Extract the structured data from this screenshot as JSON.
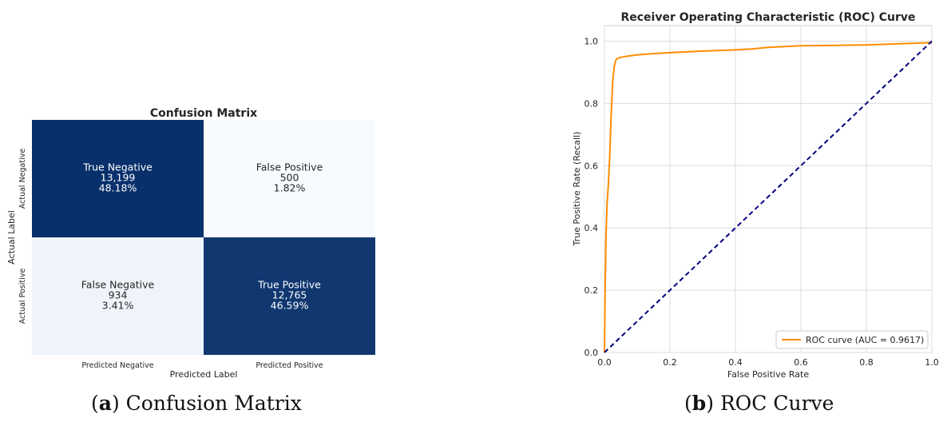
{
  "chart_data": [
    {
      "type": "heatmap",
      "title": "Confusion Matrix",
      "xlabel": "Predicted Label",
      "ylabel": "Actual Label",
      "x_ticklabels": [
        "Predicted Negative",
        "Predicted Positive"
      ],
      "y_ticklabels": [
        "Actual Negative",
        "Actual Positive"
      ],
      "cells": [
        [
          {
            "label": "True Negative",
            "count": "13,199",
            "percent": "48.18%",
            "value": 13199
          },
          {
            "label": "False Positive",
            "count": "500",
            "percent": "1.82%",
            "value": 500
          }
        ],
        [
          {
            "label": "False Negative",
            "count": "934",
            "percent": "3.41%",
            "value": 934
          },
          {
            "label": "True Positive",
            "count": "12,765",
            "percent": "46.59%",
            "value": 12765
          }
        ]
      ],
      "colormap": [
        "#f7fbff",
        "#08306b"
      ],
      "colorbar": false
    },
    {
      "type": "line",
      "title": "Receiver Operating Characteristic (ROC) Curve",
      "xlabel": "False Positive Rate",
      "ylabel": "True Positive Rate (Recall)",
      "xlim": [
        0.0,
        1.0
      ],
      "ylim": [
        0.0,
        1.05
      ],
      "xticks": [
        "0.0",
        "0.2",
        "0.4",
        "0.6",
        "0.8",
        "1.0"
      ],
      "yticks": [
        "0.0",
        "0.2",
        "0.4",
        "0.6",
        "0.8",
        "1.0"
      ],
      "grid": true,
      "legend_position": "lower-right",
      "series": [
        {
          "name": "ROC curve (AUC = 0.9617)",
          "color": "#ff8c00",
          "style": "solid",
          "x": [
            0.0,
            0.002,
            0.005,
            0.008,
            0.012,
            0.016,
            0.02,
            0.025,
            0.03,
            0.035,
            0.04,
            0.05,
            0.07,
            0.1,
            0.15,
            0.2,
            0.3,
            0.4,
            0.45,
            0.5,
            0.6,
            0.8,
            1.0
          ],
          "y": [
            0.0,
            0.2,
            0.38,
            0.48,
            0.54,
            0.63,
            0.75,
            0.87,
            0.92,
            0.94,
            0.945,
            0.948,
            0.952,
            0.956,
            0.96,
            0.963,
            0.968,
            0.972,
            0.975,
            0.98,
            0.985,
            0.988,
            0.995
          ]
        },
        {
          "name": "",
          "color": "#000080",
          "style": "dashed",
          "x": [
            0.0,
            1.0
          ],
          "y": [
            0.0,
            1.0
          ]
        }
      ]
    }
  ],
  "captions": {
    "a_letter": "a",
    "a_text": "Confusion Matrix",
    "b_letter": "b",
    "b_text": "ROC Curve"
  }
}
